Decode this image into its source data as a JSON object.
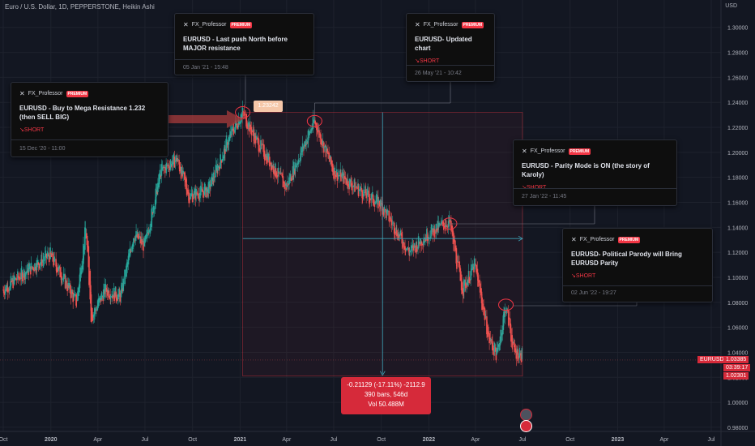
{
  "header": {
    "symbol_line": "Euro / U.S. Dollar, 1D, PEPPERSTONE, Heikin Ashi",
    "price_axis_unit": "USD"
  },
  "chart_data": {
    "type": "candlestick",
    "title": "Euro / U.S. Dollar, 1D, PEPPERSTONE, Heikin Ashi",
    "ylim": [
      0.978,
      1.318
    ],
    "y_ticks": [
      "1.30000",
      "1.28000",
      "1.26000",
      "1.24000",
      "1.22000",
      "1.20000",
      "1.18000",
      "1.16000",
      "1.14000",
      "1.12000",
      "1.10000",
      "1.08000",
      "1.06000",
      "1.04000",
      "1.02000",
      "1.00000",
      "0.98000"
    ],
    "x_ticks": [
      {
        "label": "Oct",
        "date": "2019-10-01"
      },
      {
        "label": "2020",
        "date": "2020-01-01"
      },
      {
        "label": "Apr",
        "date": "2020-04-01"
      },
      {
        "label": "Jul",
        "date": "2020-07-01"
      },
      {
        "label": "Oct",
        "date": "2020-10-01"
      },
      {
        "label": "2021",
        "date": "2021-01-01"
      },
      {
        "label": "Apr",
        "date": "2021-04-01"
      },
      {
        "label": "Jul",
        "date": "2021-07-01"
      },
      {
        "label": "Oct",
        "date": "2021-10-01"
      },
      {
        "label": "2022",
        "date": "2022-01-01"
      },
      {
        "label": "Apr",
        "date": "2022-04-01"
      },
      {
        "label": "Jul",
        "date": "2022-07-01"
      },
      {
        "label": "Oct",
        "date": "2022-10-01"
      },
      {
        "label": "2023",
        "date": "2023-01-01"
      },
      {
        "label": "Apr",
        "date": "2023-04-01"
      },
      {
        "label": "Jul",
        "date": "2023-07-01"
      }
    ],
    "price_path": [
      {
        "date": "2019-10-01",
        "value": 1.09
      },
      {
        "date": "2019-11-15",
        "value": 1.105
      },
      {
        "date": "2019-12-31",
        "value": 1.118
      },
      {
        "date": "2020-02-20",
        "value": 1.08
      },
      {
        "date": "2020-03-09",
        "value": 1.14
      },
      {
        "date": "2020-03-20",
        "value": 1.068
      },
      {
        "date": "2020-04-15",
        "value": 1.09
      },
      {
        "date": "2020-05-15",
        "value": 1.085
      },
      {
        "date": "2020-06-10",
        "value": 1.135
      },
      {
        "date": "2020-07-01",
        "value": 1.125
      },
      {
        "date": "2020-08-01",
        "value": 1.185
      },
      {
        "date": "2020-09-01",
        "value": 1.195
      },
      {
        "date": "2020-09-25",
        "value": 1.165
      },
      {
        "date": "2020-11-01",
        "value": 1.17
      },
      {
        "date": "2020-12-15",
        "value": 1.215
      },
      {
        "date": "2021-01-06",
        "value": 1.232
      },
      {
        "date": "2021-02-01",
        "value": 1.21
      },
      {
        "date": "2021-03-31",
        "value": 1.172
      },
      {
        "date": "2021-05-25",
        "value": 1.225
      },
      {
        "date": "2021-07-01",
        "value": 1.185
      },
      {
        "date": "2021-08-20",
        "value": 1.17
      },
      {
        "date": "2021-10-01",
        "value": 1.158
      },
      {
        "date": "2021-11-24",
        "value": 1.12
      },
      {
        "date": "2021-12-31",
        "value": 1.135
      },
      {
        "date": "2022-02-10",
        "value": 1.145
      },
      {
        "date": "2022-03-07",
        "value": 1.09
      },
      {
        "date": "2022-03-31",
        "value": 1.11
      },
      {
        "date": "2022-04-28",
        "value": 1.05
      },
      {
        "date": "2022-05-13",
        "value": 1.038
      },
      {
        "date": "2022-05-30",
        "value": 1.078
      },
      {
        "date": "2022-06-15",
        "value": 1.04
      },
      {
        "date": "2022-07-01",
        "value": 1.038
      }
    ],
    "last_price": {
      "symbol": "EURUSD",
      "price": "1.03385",
      "countdown": "03:39:17",
      "low_label": "1.02301"
    },
    "measure": {
      "change": "-0.21129 (-17.11%) -2112.9",
      "bars": "390 bars, 546d",
      "volume": "Vol 50.488M",
      "from_date": "2021-01-06",
      "to_date": "2022-07-01",
      "from_price": 1.232,
      "to_price": 1.021
    },
    "price_marker": "1.23242"
  },
  "ideas": [
    {
      "author": "FX_Professor",
      "badge": "PREMIUM",
      "title": "EURUSD - Buy to Mega Resistance 1.232 (then SELL BIG)",
      "direction": "SHORT",
      "time": "15 Dec '20 - 11:00"
    },
    {
      "author": "FX_Professor",
      "badge": "PREMIUM",
      "title": "EURUSD - Last push North before MAJOR resistance",
      "direction": "",
      "time": "05 Jan '21 - 15:48"
    },
    {
      "author": "FX_Professor",
      "badge": "PREMIUM",
      "title": "EURUSD- Updated chart",
      "direction": "SHORT",
      "time": "26 May '21 - 10:42"
    },
    {
      "author": "FX_Professor",
      "badge": "PREMIUM",
      "title": "EURUSD - Parity Mode is ON (the story of Karoly)",
      "direction": "SHORT",
      "time": "27 Jan '22 - 11:45"
    },
    {
      "author": "FX_Professor",
      "badge": "PREMIUM",
      "title": "EURUSD- Political Parody will Bring EURUSD Parity",
      "direction": "SHORT",
      "time": "02 Jun '22 - 19:27"
    }
  ],
  "colors": {
    "background": "#131722",
    "up": "#26a69a",
    "down": "#ef5350",
    "accent": "#f23645",
    "grid": "#1e222d",
    "text": "#b2b5be"
  }
}
